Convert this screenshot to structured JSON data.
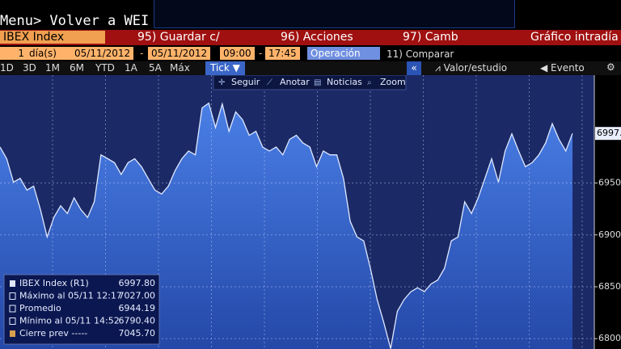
{
  "menu": "Menu> Volver a WEI",
  "header": {
    "security": "IBEX Index",
    "buttons": [
      "95) Guardar c/",
      "96) Acciones",
      "97) Camb"
    ],
    "title": "Gráfico intradía"
  },
  "range": {
    "days": "1",
    "days_unit": "día(s)",
    "start_date": "05/11/2012",
    "separator": "-",
    "end_date": "05/11/2012",
    "start_time": "09:00",
    "end_time": "17:45",
    "mode": "Operación",
    "compare": "11) Comparar"
  },
  "periods": [
    "1D",
    "3D",
    "1M",
    "6M",
    "YTD",
    "1A",
    "5A",
    "Máx"
  ],
  "interval": "Tick ▼",
  "side": {
    "collapse": "«",
    "study": "Valor/estudio",
    "event": "Evento"
  },
  "tools": [
    "Seguir",
    "Anotar",
    "Noticias",
    "Zoom"
  ],
  "chart_data": {
    "type": "area",
    "values": [
      6984.7,
      6973.4,
      6950.8,
      6954.5,
      6943.2,
      6947,
      6924.4,
      6898,
      6916.8,
      6928.1,
      6920.6,
      6935.7,
      6924.4,
      6916.8,
      6931.9,
      6977.1,
      6973.4,
      6969.6,
      6958.3,
      6969.6,
      6973.4,
      6965.8,
      6954.5,
      6943.2,
      6939.4,
      6947,
      6962.1,
      6973.4,
      6980.9,
      6977.1,
      7022.4,
      7027,
      7003.5,
      7026.2,
      6999.8,
      7018.6,
      7011.1,
      6996,
      6999.8,
      6984.7,
      6980.9,
      6984.7,
      6977.1,
      6992.2,
      6996,
      6988.5,
      6984.7,
      6965.8,
      6980.9,
      6977.1,
      6977.1,
      6954.5,
      6913.1,
      6898,
      6894.2,
      6867.8,
      6837.7,
      6815,
      6790.4,
      6826.3,
      6837.7,
      6845.2,
      6849,
      6845.2,
      6852.7,
      6856.5,
      6867.8,
      6894.2,
      6898,
      6931.9,
      6920.6,
      6935.7,
      6954.5,
      6973.4,
      6950.8,
      6980.9,
      6997.5,
      6980.9,
      6965.8,
      6969.6,
      6977.1,
      6988.5,
      7007.3,
      6992.2,
      6980.9,
      6997.8
    ],
    "ylim": [
      6790,
      7054
    ],
    "yticks": [
      6800,
      6850,
      6900,
      6950
    ],
    "grid": true,
    "color": "#4a7fe6",
    "last_value": 6997.8,
    "stats": {
      "names": [
        "IBEX Index (R1)",
        "Máximo al 05/11 12:17",
        "Promedio",
        "Mínimo al 05/11 14:52",
        "Cierre prev -----"
      ],
      "values": [
        6997.8,
        7027,
        6944.19,
        6790.4,
        7045.7
      ],
      "value_labels": [
        "6997.80",
        "7027.00",
        "6944.19",
        "6790.40",
        "7045.70"
      ]
    }
  }
}
